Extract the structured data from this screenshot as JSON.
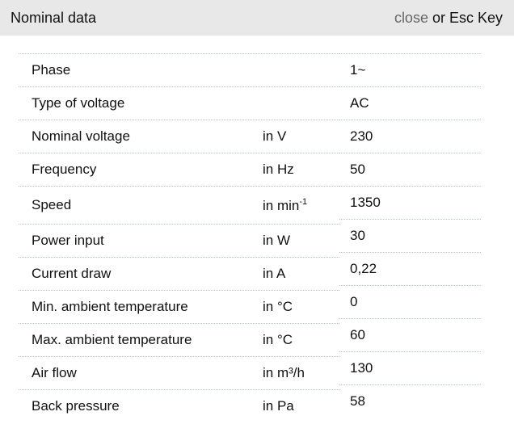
{
  "header": {
    "title": "Nominal data",
    "close_label": "close",
    "close_suffix": " or Esc Key"
  },
  "rows": [
    {
      "label": "Phase",
      "unit": "",
      "value": "1~"
    },
    {
      "label": "Type of voltage",
      "unit": "",
      "value": "AC"
    },
    {
      "label": "Nominal voltage",
      "unit": "in V",
      "value": "230"
    },
    {
      "label": "Frequency",
      "unit": "in Hz",
      "value": "50"
    },
    {
      "label": "Speed",
      "unit": "in min",
      "unit_sup": "-1",
      "value": "1350"
    },
    {
      "label": "Power input",
      "unit": "in W",
      "value": "30"
    },
    {
      "label": "Current draw",
      "unit": "in A",
      "value": "0,22"
    },
    {
      "label": "Min. ambient temperature",
      "unit": "in °C",
      "value": "0"
    },
    {
      "label": "Max. ambient temperature",
      "unit": "in °C",
      "value": "60"
    },
    {
      "label": "Air flow",
      "unit": "in m³/h",
      "value": "130"
    },
    {
      "label": "Back pressure",
      "unit": "in Pa",
      "value": "58"
    }
  ]
}
